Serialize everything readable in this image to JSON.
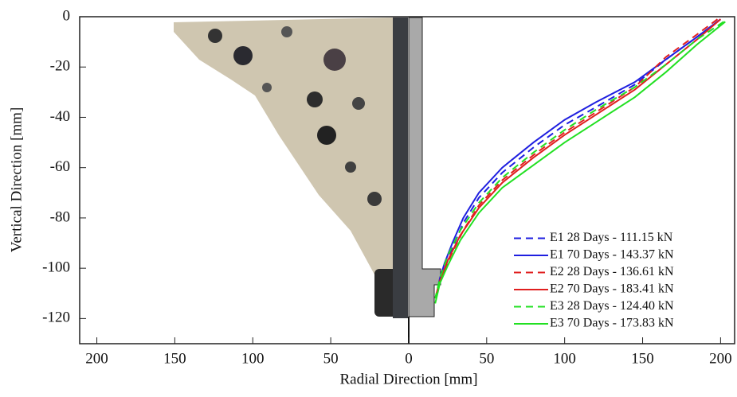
{
  "chart_data": {
    "type": "line",
    "xlabel": "Radial Direction [mm]",
    "ylabel": "Vertical Direction [mm]",
    "xlim": [
      -211,
      209
    ],
    "ylim": [
      -130,
      0
    ],
    "xticks": [
      {
        "value": -200,
        "label": "200"
      },
      {
        "value": -150,
        "label": "150"
      },
      {
        "value": -100,
        "label": "100"
      },
      {
        "value": -50,
        "label": "50"
      },
      0,
      50,
      100,
      150,
      200
    ],
    "yticks": [
      0,
      -20,
      -40,
      -60,
      -80,
      -100,
      -120
    ],
    "legend": "lower right",
    "series": [
      {
        "name": "E1 28 Days - 111.15 kN",
        "color": "#1f1fe0",
        "linestyle": "dashed",
        "x": [
          200,
          185,
          165,
          145,
          120,
          100,
          80,
          60,
          45,
          35,
          28,
          22,
          19
        ],
        "values": [
          -1,
          -8,
          -17,
          -27,
          -36,
          -43,
          -52,
          -62,
          -72,
          -82,
          -92,
          -102,
          -108
        ]
      },
      {
        "name": "E1 70 Days - 143.37 kN",
        "color": "#1f1fe0",
        "linestyle": "solid",
        "x": [
          200,
          185,
          165,
          145,
          120,
          100,
          80,
          60,
          45,
          35,
          28,
          23,
          20,
          18
        ],
        "values": [
          -1,
          -8,
          -17,
          -26,
          -34,
          -41,
          -50,
          -60,
          -70,
          -80,
          -90,
          -98,
          -104,
          -110
        ]
      },
      {
        "name": "E2 28 Days - 136.61 kN",
        "color": "#e01f1f",
        "linestyle": "dashed",
        "x": [
          198,
          185,
          165,
          145,
          120,
          100,
          80,
          60,
          45,
          35,
          27,
          21,
          18
        ],
        "values": [
          -1,
          -7,
          -16,
          -28,
          -38,
          -46,
          -55,
          -65,
          -75,
          -85,
          -95,
          -104,
          -110
        ]
      },
      {
        "name": "E2 70 Days - 183.41 kN",
        "color": "#e01f1f",
        "linestyle": "solid",
        "x": [
          200,
          185,
          165,
          145,
          120,
          100,
          80,
          60,
          45,
          33,
          25,
          20,
          17
        ],
        "values": [
          -1,
          -9,
          -19,
          -29,
          -39,
          -47,
          -56,
          -66,
          -76,
          -87,
          -97,
          -105,
          -112
        ]
      },
      {
        "name": "E3 28 Days - 124.40 kN",
        "color": "#22e022",
        "linestyle": "dashed",
        "x": [
          202,
          185,
          165,
          145,
          120,
          100,
          80,
          60,
          45,
          33,
          25,
          20,
          17
        ],
        "values": [
          -2,
          -9,
          -19,
          -28,
          -37,
          -45,
          -54,
          -64,
          -74,
          -85,
          -95,
          -104,
          -112
        ]
      },
      {
        "name": "E3 70 Days - 173.83 kN",
        "color": "#22e022",
        "linestyle": "solid",
        "x": [
          203,
          185,
          165,
          145,
          120,
          100,
          80,
          60,
          45,
          33,
          25,
          20,
          17
        ],
        "values": [
          -2,
          -11,
          -22,
          -32,
          -42,
          -50,
          -59,
          -68,
          -78,
          -89,
          -99,
          -106,
          -114
        ]
      }
    ]
  }
}
